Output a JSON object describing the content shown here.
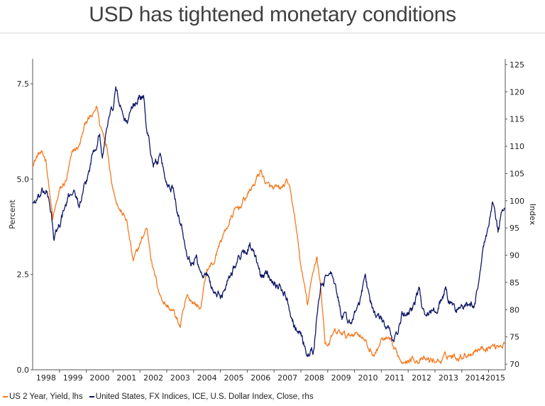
{
  "title": "USD has tightened monetary conditions",
  "chart_data": {
    "type": "line",
    "title": "USD has tightened monetary conditions",
    "xlabel": "",
    "ylabel_left": "Percent",
    "ylabel_right": "Index",
    "x_tick_labels": [
      "1998",
      "1999",
      "2000",
      "2001",
      "2002",
      "2003",
      "2004",
      "2005",
      "2006",
      "2007",
      "2008",
      "2009",
      "2010",
      "2011",
      "2012",
      "2013",
      "2014",
      "2015"
    ],
    "xlim": [
      1998.0,
      2015.62
    ],
    "ylim_left": [
      0.0,
      8.1
    ],
    "yticks_left": [
      {
        "value": 0.0,
        "label": "0.0"
      },
      {
        "value": 2.5,
        "label": "2.5"
      },
      {
        "value": 5.0,
        "label": "5.0"
      },
      {
        "value": 7.5,
        "label": "7.5"
      }
    ],
    "ylim_right": [
      69.0,
      126.0
    ],
    "yticks_right": [
      {
        "value": 70,
        "label": "70"
      },
      {
        "value": 75,
        "label": "75"
      },
      {
        "value": 80,
        "label": "80"
      },
      {
        "value": 85,
        "label": "85"
      },
      {
        "value": 90,
        "label": "90"
      },
      {
        "value": 95,
        "label": "95"
      },
      {
        "value": 100,
        "label": "100"
      },
      {
        "value": 105,
        "label": "105"
      },
      {
        "value": 110,
        "label": "110"
      },
      {
        "value": 115,
        "label": "115"
      },
      {
        "value": 120,
        "label": "120"
      },
      {
        "value": 125,
        "label": "125"
      }
    ],
    "grid": false,
    "legend_position": "bottom-left",
    "series": [
      {
        "name": "US 2 Year, Yield, lhs",
        "axis": "left",
        "color": "#F47A20",
        "points": [
          [
            1998.0,
            5.42
          ],
          [
            1998.25,
            5.68
          ],
          [
            1998.5,
            5.51
          ],
          [
            1998.75,
            3.93
          ],
          [
            1999.0,
            4.67
          ],
          [
            1999.25,
            4.95
          ],
          [
            1999.5,
            5.7
          ],
          [
            1999.75,
            5.88
          ],
          [
            2000.0,
            6.54
          ],
          [
            2000.25,
            6.63
          ],
          [
            2000.4,
            6.91
          ],
          [
            2000.5,
            6.44
          ],
          [
            2000.75,
            5.98
          ],
          [
            2001.0,
            4.77
          ],
          [
            2001.25,
            4.21
          ],
          [
            2001.5,
            3.93
          ],
          [
            2001.75,
            2.81
          ],
          [
            2002.0,
            3.28
          ],
          [
            2002.25,
            3.74
          ],
          [
            2002.5,
            2.63
          ],
          [
            2002.75,
            1.97
          ],
          [
            2003.0,
            1.69
          ],
          [
            2003.25,
            1.51
          ],
          [
            2003.5,
            1.13
          ],
          [
            2003.75,
            1.88
          ],
          [
            2004.0,
            1.79
          ],
          [
            2004.25,
            1.6
          ],
          [
            2004.5,
            2.63
          ],
          [
            2004.75,
            2.81
          ],
          [
            2005.0,
            3.37
          ],
          [
            2005.25,
            3.74
          ],
          [
            2005.5,
            4.12
          ],
          [
            2005.75,
            4.3
          ],
          [
            2006.0,
            4.58
          ],
          [
            2006.25,
            4.86
          ],
          [
            2006.5,
            5.23
          ],
          [
            2006.75,
            4.82
          ],
          [
            2007.0,
            4.71
          ],
          [
            2007.25,
            4.71
          ],
          [
            2007.5,
            4.95
          ],
          [
            2007.75,
            4.12
          ],
          [
            2008.0,
            2.72
          ],
          [
            2008.25,
            1.69
          ],
          [
            2008.5,
            2.72
          ],
          [
            2008.6,
            3.0
          ],
          [
            2008.75,
            2.07
          ],
          [
            2008.9,
            0.76
          ],
          [
            2009.0,
            0.67
          ],
          [
            2009.25,
            0.95
          ],
          [
            2009.5,
            0.95
          ],
          [
            2009.75,
            0.86
          ],
          [
            2010.0,
            0.99
          ],
          [
            2010.25,
            0.95
          ],
          [
            2010.5,
            0.58
          ],
          [
            2010.75,
            0.39
          ],
          [
            2011.0,
            0.76
          ],
          [
            2011.25,
            0.76
          ],
          [
            2011.5,
            0.48
          ],
          [
            2011.75,
            0.26
          ],
          [
            2012.0,
            0.26
          ],
          [
            2012.25,
            0.3
          ],
          [
            2012.5,
            0.24
          ],
          [
            2012.75,
            0.24
          ],
          [
            2013.0,
            0.24
          ],
          [
            2013.25,
            0.24
          ],
          [
            2013.5,
            0.39
          ],
          [
            2013.75,
            0.34
          ],
          [
            2014.0,
            0.39
          ],
          [
            2014.25,
            0.43
          ],
          [
            2014.5,
            0.54
          ],
          [
            2014.75,
            0.58
          ],
          [
            2015.0,
            0.61
          ],
          [
            2015.25,
            0.63
          ],
          [
            2015.5,
            0.69
          ],
          [
            2015.6,
            0.7
          ]
        ]
      },
      {
        "name": "United States, FX Indices, ICE, U.S. Dollar Index, Close, rhs",
        "axis": "right",
        "color": "#0D1566",
        "points": [
          [
            1998.0,
            99.7
          ],
          [
            1998.25,
            100.4
          ],
          [
            1998.5,
            101.7
          ],
          [
            1998.7,
            97.8
          ],
          [
            1998.8,
            92.6
          ],
          [
            1999.0,
            95.8
          ],
          [
            1999.25,
            99.1
          ],
          [
            1999.5,
            102.3
          ],
          [
            1999.75,
            99.1
          ],
          [
            2000.0,
            103.0
          ],
          [
            2000.25,
            108.9
          ],
          [
            2000.5,
            112.8
          ],
          [
            2000.6,
            107.5
          ],
          [
            2000.8,
            114.7
          ],
          [
            2001.0,
            117.3
          ],
          [
            2001.1,
            120.6
          ],
          [
            2001.25,
            117.3
          ],
          [
            2001.5,
            114.1
          ],
          [
            2001.75,
            117.3
          ],
          [
            2002.0,
            119.3
          ],
          [
            2002.15,
            118.6
          ],
          [
            2002.25,
            113.4
          ],
          [
            2002.5,
            106.9
          ],
          [
            2002.75,
            107.5
          ],
          [
            2003.0,
            103.0
          ],
          [
            2003.25,
            102.3
          ],
          [
            2003.5,
            96.5
          ],
          [
            2003.75,
            91.3
          ],
          [
            2004.0,
            88.0
          ],
          [
            2004.1,
            90.6
          ],
          [
            2004.25,
            86.7
          ],
          [
            2004.5,
            86.0
          ],
          [
            2004.75,
            83.4
          ],
          [
            2005.0,
            82.1
          ],
          [
            2005.25,
            85.4
          ],
          [
            2005.5,
            88.0
          ],
          [
            2005.75,
            89.9
          ],
          [
            2006.0,
            91.3
          ],
          [
            2006.1,
            91.9
          ],
          [
            2006.25,
            89.9
          ],
          [
            2006.5,
            86.0
          ],
          [
            2006.75,
            86.7
          ],
          [
            2007.0,
            85.4
          ],
          [
            2007.25,
            84.1
          ],
          [
            2007.5,
            82.1
          ],
          [
            2007.75,
            77.6
          ],
          [
            2008.0,
            75.6
          ],
          [
            2008.25,
            71.7
          ],
          [
            2008.5,
            72.3
          ],
          [
            2008.6,
            79.5
          ],
          [
            2008.75,
            84.1
          ],
          [
            2009.0,
            86.0
          ],
          [
            2009.1,
            88.0
          ],
          [
            2009.25,
            84.1
          ],
          [
            2009.5,
            79.5
          ],
          [
            2009.75,
            77.6
          ],
          [
            2010.0,
            78.9
          ],
          [
            2010.25,
            82.1
          ],
          [
            2010.4,
            86.7
          ],
          [
            2010.5,
            83.4
          ],
          [
            2010.75,
            79.5
          ],
          [
            2011.0,
            77.6
          ],
          [
            2011.25,
            76.3
          ],
          [
            2011.4,
            74.3
          ],
          [
            2011.6,
            75.6
          ],
          [
            2011.75,
            78.9
          ],
          [
            2012.0,
            79.5
          ],
          [
            2012.25,
            81.5
          ],
          [
            2012.4,
            83.4
          ],
          [
            2012.5,
            80.8
          ],
          [
            2012.75,
            79.5
          ],
          [
            2013.0,
            79.9
          ],
          [
            2013.25,
            82.1
          ],
          [
            2013.4,
            83.7
          ],
          [
            2013.5,
            81.5
          ],
          [
            2013.75,
            80.2
          ],
          [
            2014.0,
            80.4
          ],
          [
            2014.25,
            80.2
          ],
          [
            2014.5,
            80.8
          ],
          [
            2014.6,
            84.7
          ],
          [
            2014.75,
            89.9
          ],
          [
            2014.9,
            93.9
          ],
          [
            2015.0,
            95.2
          ],
          [
            2015.15,
            99.7
          ],
          [
            2015.25,
            96.5
          ],
          [
            2015.35,
            93.9
          ],
          [
            2015.5,
            97.8
          ],
          [
            2015.6,
            98.5
          ]
        ]
      }
    ],
    "legend": [
      {
        "label": "US 2 Year, Yield, lhs",
        "color": "#F47A20"
      },
      {
        "label": "United States, FX Indices, ICE, U.S. Dollar Index, Close, rhs",
        "color": "#0D1566"
      }
    ]
  }
}
